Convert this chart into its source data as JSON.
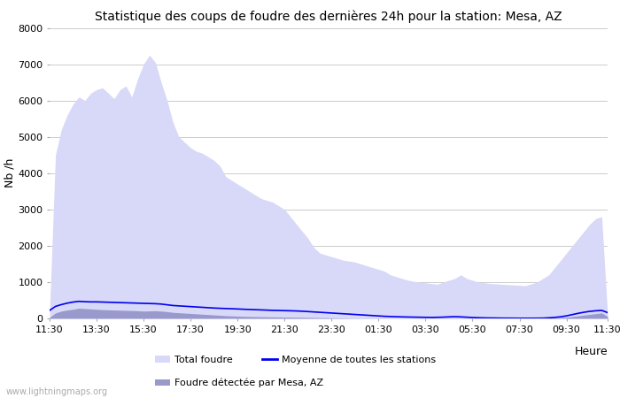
{
  "title": "Statistique des coups de foudre des dernières 24h pour la station: Mesa, AZ",
  "xlabel": "Heure",
  "ylabel": "Nb /h",
  "ylim": [
    0,
    8000
  ],
  "yticks": [
    0,
    1000,
    2000,
    3000,
    4000,
    5000,
    6000,
    7000,
    8000
  ],
  "x_labels": [
    "11:30",
    "13:30",
    "15:30",
    "17:30",
    "19:30",
    "21:30",
    "23:30",
    "01:30",
    "03:30",
    "05:30",
    "07:30",
    "09:30",
    "11:30"
  ],
  "background_color": "#ffffff",
  "grid_color": "#cccccc",
  "total_foudre_color": "#d8d8f8",
  "foudre_detectee_color": "#9999cc",
  "moyenne_color": "#0000ee",
  "watermark": "www.lightningmaps.org",
  "total_foudre": [
    200,
    4500,
    5200,
    5600,
    5900,
    6100,
    6000,
    6200,
    6300,
    6350,
    6200,
    6050,
    6300,
    6400,
    6100,
    6600,
    7000,
    7250,
    7050,
    6500,
    6000,
    5400,
    5000,
    4850,
    4700,
    4600,
    4550,
    4450,
    4350,
    4200,
    3900,
    3800,
    3700,
    3600,
    3500,
    3400,
    3300,
    3250,
    3200,
    3100,
    3000,
    2800,
    2600,
    2400,
    2200,
    1950,
    1800,
    1750,
    1700,
    1650,
    1600,
    1580,
    1550,
    1500,
    1450,
    1400,
    1350,
    1300,
    1200,
    1150,
    1100,
    1050,
    1020,
    1000,
    980,
    960,
    940,
    1000,
    1050,
    1100,
    1200,
    1100,
    1050,
    1000,
    980,
    960,
    950,
    940,
    930,
    920,
    910,
    900,
    950,
    1000,
    1100,
    1200,
    1400,
    1600,
    1800,
    2000,
    2200,
    2400,
    2600,
    2750,
    2800,
    100
  ],
  "foudre_detectee": [
    30,
    150,
    200,
    230,
    250,
    280,
    270,
    260,
    250,
    240,
    235,
    230,
    225,
    220,
    215,
    210,
    200,
    205,
    210,
    200,
    185,
    165,
    155,
    145,
    135,
    125,
    115,
    105,
    95,
    85,
    75,
    68,
    62,
    56,
    52,
    49,
    46,
    44,
    41,
    39,
    36,
    34,
    31,
    29,
    26,
    24,
    21,
    19,
    16,
    13,
    11,
    9,
    7,
    6,
    6,
    5,
    4,
    4,
    4,
    4,
    4,
    4,
    4,
    4,
    4,
    4,
    5,
    6,
    7,
    8,
    7,
    6,
    5,
    4,
    4,
    5,
    6,
    6,
    6,
    6,
    6,
    6,
    6,
    6,
    6,
    11,
    16,
    21,
    31,
    51,
    71,
    91,
    111,
    131,
    151,
    50
  ],
  "moyenne": [
    220,
    330,
    380,
    420,
    450,
    470,
    460,
    455,
    455,
    450,
    445,
    440,
    435,
    430,
    425,
    420,
    415,
    410,
    405,
    395,
    375,
    355,
    345,
    335,
    325,
    315,
    305,
    295,
    285,
    278,
    272,
    266,
    260,
    252,
    246,
    240,
    234,
    228,
    222,
    218,
    214,
    210,
    205,
    198,
    188,
    178,
    168,
    158,
    148,
    138,
    128,
    118,
    108,
    98,
    88,
    78,
    68,
    58,
    52,
    46,
    42,
    38,
    35,
    32,
    29,
    27,
    30,
    35,
    42,
    48,
    42,
    33,
    24,
    18,
    14,
    12,
    10,
    8,
    7,
    6,
    5,
    5,
    5,
    6,
    8,
    16,
    28,
    44,
    70,
    105,
    140,
    170,
    195,
    210,
    220,
    160
  ],
  "n_points": 96,
  "tick_positions": [
    0,
    8,
    16,
    24,
    32,
    40,
    48,
    56,
    64,
    72,
    80,
    88,
    95
  ]
}
